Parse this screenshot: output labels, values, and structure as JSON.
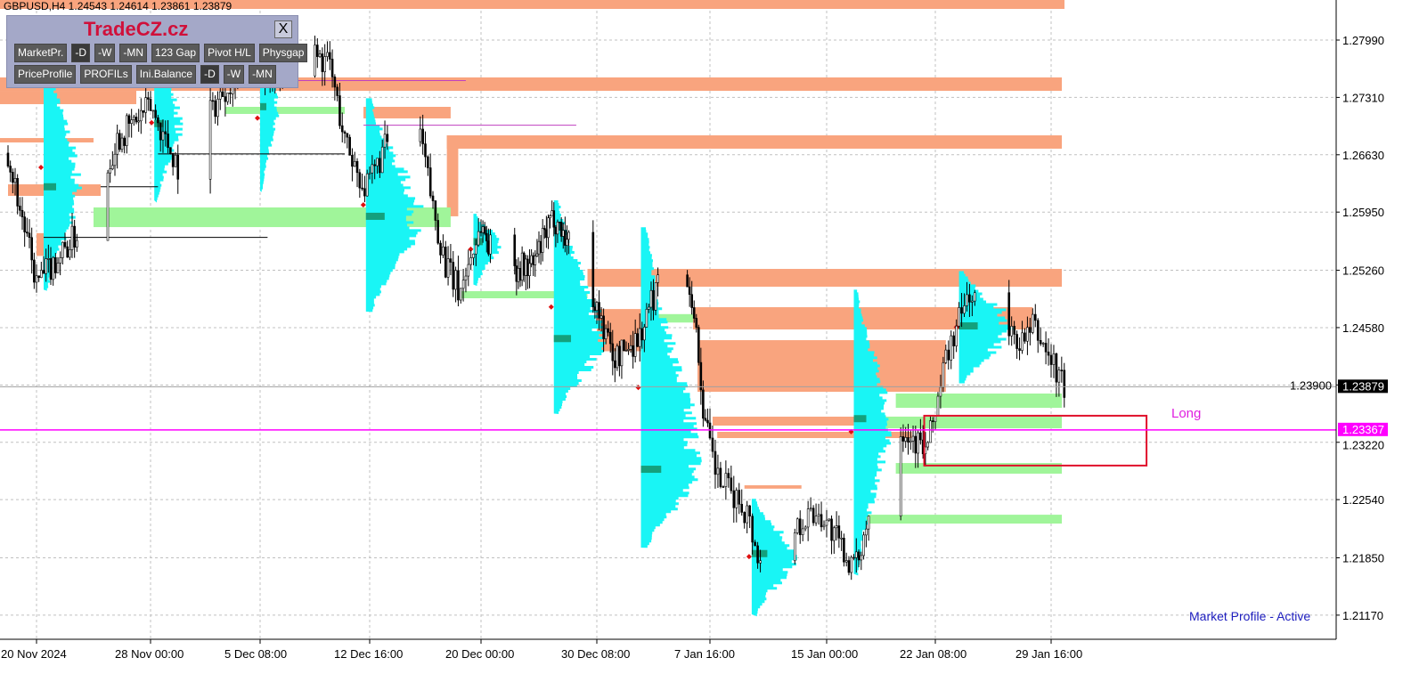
{
  "header": {
    "symbol_line": "GBPUSD,H4  1.24543 1.24614 1.23861 1.23879"
  },
  "panel": {
    "brand": "TradeCZ.cz",
    "close": "X",
    "row1": [
      "MarketPr.",
      "-D",
      "-W",
      "-MN",
      "123 Gap",
      "Pivot H/L",
      "Physgap"
    ],
    "row2": [
      "PriceProfile",
      "PROFILs",
      "Ini.Balance",
      "-D",
      "-W",
      "-MN"
    ]
  },
  "status": "Market Profile - Active",
  "colors": {
    "supply": "#f9a47e",
    "demand": "#a0f59a",
    "profile": "#19f5f5",
    "poc": "#14a07c",
    "signal_line": "#ff00ff",
    "trade_box": "#e0102a"
  },
  "chart_data": {
    "type": "candlestick",
    "symbol": "GBPUSD",
    "timeframe": "H4",
    "ylim": [
      1.2065,
      1.285
    ],
    "y_ticks": [
      "1.27990",
      "1.27310",
      "1.26630",
      "1.25950",
      "1.25260",
      "1.24580",
      "1.23900",
      "1.23220",
      "1.22540",
      "1.21850",
      "1.21170"
    ],
    "x_ticks": [
      {
        "label": "20 Nov 2024",
        "at": "2024-11-20T00:00"
      },
      {
        "label": "28 Nov 00:00",
        "at": "2024-11-28T00:00"
      },
      {
        "label": "5 Dec 08:00",
        "at": "2024-12-05T08:00"
      },
      {
        "label": "12 Dec 16:00",
        "at": "2024-12-12T16:00"
      },
      {
        "label": "20 Dec 00:00",
        "at": "2024-12-20T00:00"
      },
      {
        "label": "30 Dec 08:00",
        "at": "2024-12-30T08:00"
      },
      {
        "label": "7 Jan 16:00",
        "at": "2025-01-07T16:00"
      },
      {
        "label": "15 Jan 00:00",
        "at": "2025-01-15T00:00"
      },
      {
        "label": "22 Jan 08:00",
        "at": "2025-01-22T08:00"
      },
      {
        "label": "29 Jan 16:00",
        "at": "2025-01-29T16:00"
      }
    ],
    "grid": true,
    "current_price": "1.23879",
    "signal_price": "1.23367",
    "signal_label": "Long",
    "price_path": [
      [
        "2024-11-18T00:00",
        1.2665
      ],
      [
        "2024-11-20T00:00",
        1.251
      ],
      [
        "2024-11-22T10:00",
        1.256
      ],
      [
        "2024-11-24T07:00",
        1.26
      ],
      [
        "2024-11-25T13:00",
        1.268
      ],
      [
        "2024-11-28T00:00",
        1.272
      ],
      [
        "2024-11-29T20:00",
        1.265
      ],
      [
        "2024-12-02T05:00",
        1.272
      ],
      [
        "2024-12-04T00:00",
        1.277
      ],
      [
        "2024-12-05T20:00",
        1.276
      ],
      [
        "2024-12-08T05:00",
        1.279
      ],
      [
        "2024-12-10T00:00",
        1.277
      ],
      [
        "2024-12-11T00:00",
        1.268
      ],
      [
        "2024-12-12T10:00",
        1.262
      ],
      [
        "2024-12-14T03:00",
        1.269
      ],
      [
        "2024-12-15T21:00",
        1.27
      ],
      [
        "2024-12-16T20:00",
        1.26
      ],
      [
        "2024-12-17T17:00",
        1.253
      ],
      [
        "2024-12-18T14:00",
        1.25
      ],
      [
        "2024-12-20T00:00",
        1.258
      ],
      [
        "2024-12-21T14:00",
        1.253
      ],
      [
        "2024-12-24T14:00",
        1.253
      ],
      [
        "2024-12-26T12:00",
        1.259
      ],
      [
        "2024-12-29T12:00",
        1.252
      ],
      [
        "2024-12-31T15:00",
        1.242
      ],
      [
        "2025-01-02T14:00",
        1.245
      ],
      [
        "2025-01-04T00:00",
        1.252
      ],
      [
        "2025-01-05T10:00",
        1.256
      ],
      [
        "2025-01-06T10:00",
        1.249
      ],
      [
        "2025-01-07T06:00",
        1.235
      ],
      [
        "2025-01-08T03:00",
        1.228
      ],
      [
        "2025-01-10T00:00",
        1.224
      ],
      [
        "2025-01-11T10:00",
        1.213
      ],
      [
        "2025-01-12T20:00",
        1.222
      ],
      [
        "2025-01-13T10:00",
        1.223
      ],
      [
        "2025-01-14T13:00",
        1.224
      ],
      [
        "2025-01-16T22:00",
        1.217
      ],
      [
        "2025-01-18T07:00",
        1.227
      ],
      [
        "2025-01-19T16:00",
        1.235
      ],
      [
        "2025-01-21T18:00",
        1.231
      ],
      [
        "2025-01-23T00:00",
        1.242
      ],
      [
        "2025-01-24T11:00",
        1.25
      ],
      [
        "2025-01-25T20:00",
        1.246
      ],
      [
        "2025-01-28T00:00",
        1.244
      ],
      [
        "2025-01-28T13:00",
        1.246
      ],
      [
        "2025-01-30T12:00",
        1.2388
      ]
    ],
    "supply_zones": [
      [
        "2024-11-15T00:00",
        "2025-01-31T00:00",
        1.28465,
        1.2836
      ],
      [
        "2024-11-15T00:00",
        "2025-01-31T00:00",
        1.27547,
        1.27388
      ],
      [
        "2024-11-15T00:00",
        "2024-11-27T00:00",
        1.27388,
        1.2723
      ],
      [
        "2024-11-15T00:00",
        "2024-11-24T00:00",
        1.26828,
        1.26776
      ],
      [
        "2024-11-18T00:00",
        "2024-11-24T12:00",
        1.26279,
        1.26142
      ],
      [
        "2024-11-20T00:00",
        "2024-11-21T00:00",
        1.257,
        1.2543
      ],
      [
        "2024-12-12T06:00",
        "2024-12-18T00:00",
        1.27198,
        1.27061
      ],
      [
        "2024-12-17T18:00",
        "2024-12-18T12:00",
        1.2686,
        1.259
      ],
      [
        "2024-12-17T18:00",
        "2025-01-31T00:00",
        1.2686,
        1.26702
      ],
      [
        "2024-12-29T12:00",
        "2025-01-31T00:00",
        1.25276,
        1.25065
      ],
      [
        "2025-01-06T10:00",
        "2025-01-28T12:00",
        1.24822,
        1.24558
      ],
      [
        "2025-01-06T18:00",
        "2025-01-23T00:00",
        1.24431,
        1.23819
      ],
      [
        "2024-12-30T08:00",
        "2025-01-02T14:00",
        1.248,
        1.243
      ],
      [
        "2025-01-07T20:00",
        "2025-01-22T00:00",
        1.23524,
        1.23418
      ],
      [
        "2025-01-08T03:00",
        "2025-01-20T18:00",
        1.23344,
        1.2327
      ],
      [
        "2025-01-09T20:00",
        "2025-01-13T10:00",
        1.2271,
        1.2267
      ]
    ],
    "demand_zones": [
      [
        "2024-11-24T00:00",
        "2024-12-18T00:00",
        1.26005,
        1.25772
      ],
      [
        "2024-12-03T00:00",
        "2024-12-11T00:00",
        1.27198,
        1.27114
      ],
      [
        "2024-12-18T14:00",
        "2024-12-29T12:00",
        1.25012,
        1.24928
      ],
      [
        "2025-01-02T14:00",
        "2025-01-06T10:00",
        1.2474,
        1.2464
      ],
      [
        "2025-01-19T16:00",
        "2025-01-31T00:00",
        1.23798,
        1.23629
      ],
      [
        "2025-01-18T07:00",
        "2025-01-31T00:00",
        1.23524,
        1.23386
      ],
      [
        "2025-01-19T16:00",
        "2025-01-31T00:00",
        1.22974,
        1.22848
      ],
      [
        "2025-01-17T12:00",
        "2025-01-31T00:00",
        1.22361,
        1.22256
      ]
    ],
    "profiles": [
      [
        "2024-11-20T12:00",
        1.2793,
        1.2503,
        1.2625,
        40
      ],
      [
        "2024-11-28T06:00",
        1.2793,
        1.2609,
        1.27,
        30
      ],
      [
        "2024-12-05T08:00",
        1.2793,
        1.262,
        1.272,
        20
      ],
      [
        "2024-12-12T10:00",
        1.273,
        1.2477,
        1.259,
        60
      ],
      [
        "2024-12-19T12:00",
        1.2593,
        1.2509,
        1.256,
        30
      ],
      [
        "2024-12-26T12:00",
        1.2609,
        1.2356,
        1.2445,
        55
      ],
      [
        "2025-01-02T14:00",
        1.2577,
        1.2197,
        1.229,
        65
      ],
      [
        "2025-01-10T07:00",
        1.2255,
        1.2118,
        1.219,
        50
      ],
      [
        "2025-01-16T20:00",
        1.2503,
        1.2166,
        1.235,
        40
      ],
      [
        "2025-01-23T20:00",
        1.2525,
        1.2392,
        1.246,
        60
      ]
    ],
    "level_lines": [
      [
        "2024-11-24T12:00",
        "2024-11-28T12:00",
        1.2625,
        "#000000"
      ],
      [
        "2024-11-28T12:00",
        "2024-12-11T00:00",
        1.2664,
        "#000000"
      ],
      [
        "2024-11-20T12:00",
        "2024-12-05T20:00",
        1.2565,
        "#000000"
      ],
      [
        "2024-12-05T20:00",
        "2024-12-19T00:00",
        1.2751,
        "#c040c0"
      ],
      [
        "2024-12-12T06:00",
        "2024-12-28T12:00",
        1.2698,
        "#c040c0"
      ]
    ],
    "trade_box": [
      "2025-01-21T14:00",
      "2025-02-04T17:00",
      1.23535,
      1.22944
    ]
  }
}
